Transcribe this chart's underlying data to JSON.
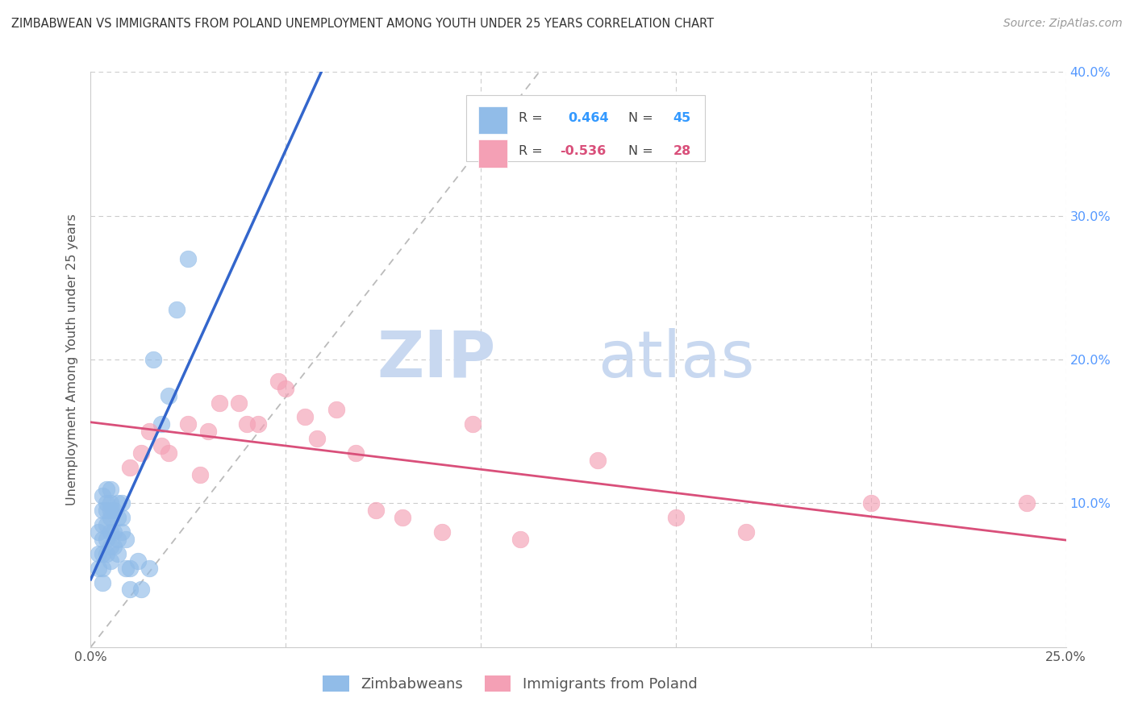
{
  "title": "ZIMBABWEAN VS IMMIGRANTS FROM POLAND UNEMPLOYMENT AMONG YOUTH UNDER 25 YEARS CORRELATION CHART",
  "source": "Source: ZipAtlas.com",
  "ylabel": "Unemployment Among Youth under 25 years",
  "legend_bottom": [
    "Zimbabweans",
    "Immigrants from Poland"
  ],
  "r_zimbabwe": 0.464,
  "n_zimbabwe": 45,
  "r_poland": -0.536,
  "n_poland": 28,
  "xlim": [
    0.0,
    0.25
  ],
  "ylim": [
    0.0,
    0.4
  ],
  "color_zimbabwe": "#91bce8",
  "color_poland": "#f4a0b5",
  "line_color_zimbabwe": "#3366cc",
  "line_color_poland": "#d94f7a",
  "line_color_diagonal": "#bbbbbb",
  "background_color": "#ffffff",
  "watermark_zip_color": "#c8d8ee",
  "watermark_atlas_color": "#c8d8ee",
  "zimbabwe_x": [
    0.002,
    0.002,
    0.002,
    0.003,
    0.003,
    0.003,
    0.003,
    0.003,
    0.003,
    0.003,
    0.004,
    0.004,
    0.004,
    0.004,
    0.004,
    0.004,
    0.005,
    0.005,
    0.005,
    0.005,
    0.005,
    0.005,
    0.005,
    0.006,
    0.006,
    0.006,
    0.007,
    0.007,
    0.007,
    0.007,
    0.008,
    0.008,
    0.008,
    0.009,
    0.009,
    0.01,
    0.01,
    0.012,
    0.013,
    0.015,
    0.016,
    0.018,
    0.02,
    0.022,
    0.025
  ],
  "zimbabwe_y": [
    0.055,
    0.065,
    0.08,
    0.045,
    0.055,
    0.065,
    0.075,
    0.085,
    0.095,
    0.105,
    0.065,
    0.075,
    0.085,
    0.095,
    0.1,
    0.11,
    0.06,
    0.07,
    0.08,
    0.09,
    0.095,
    0.1,
    0.11,
    0.07,
    0.08,
    0.095,
    0.065,
    0.075,
    0.09,
    0.1,
    0.08,
    0.09,
    0.1,
    0.055,
    0.075,
    0.04,
    0.055,
    0.06,
    0.04,
    0.055,
    0.2,
    0.155,
    0.175,
    0.235,
    0.27
  ],
  "poland_x": [
    0.01,
    0.013,
    0.015,
    0.018,
    0.02,
    0.025,
    0.028,
    0.03,
    0.033,
    0.038,
    0.04,
    0.043,
    0.048,
    0.05,
    0.055,
    0.058,
    0.063,
    0.068,
    0.073,
    0.08,
    0.09,
    0.098,
    0.11,
    0.13,
    0.15,
    0.168,
    0.2,
    0.24
  ],
  "poland_y": [
    0.125,
    0.135,
    0.15,
    0.14,
    0.135,
    0.155,
    0.12,
    0.15,
    0.17,
    0.17,
    0.155,
    0.155,
    0.185,
    0.18,
    0.16,
    0.145,
    0.165,
    0.135,
    0.095,
    0.09,
    0.08,
    0.155,
    0.075,
    0.13,
    0.09,
    0.08,
    0.1,
    0.1
  ]
}
